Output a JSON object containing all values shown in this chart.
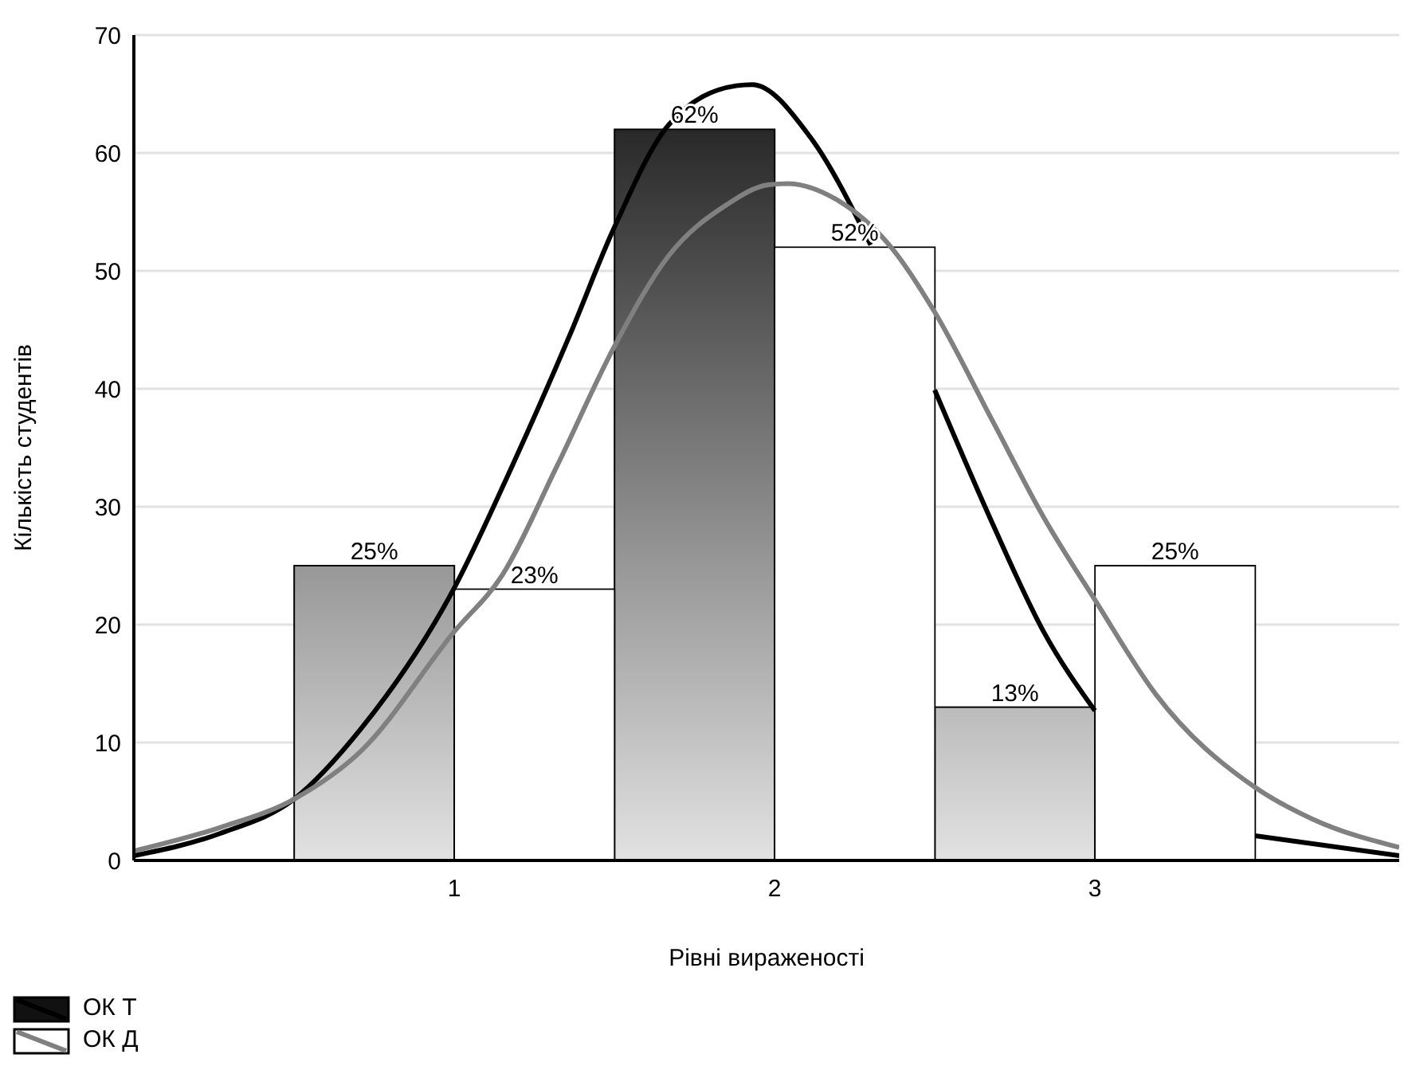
{
  "chart_data": {
    "type": "bar",
    "xlabel": "Рівні вираженості",
    "ylabel": "Кількість студентів",
    "xlim": [
      0,
      3.95
    ],
    "xticks": [
      1,
      2,
      3
    ],
    "ylim": [
      0,
      70
    ],
    "yticks": [
      0,
      10,
      20,
      30,
      40,
      50,
      60,
      70
    ],
    "grid": "y",
    "legend": "bottom left",
    "series": [
      {
        "name": "ОК Т",
        "color": "#111111",
        "x": [
          0.75,
          1.75,
          2.75
        ],
        "values": [
          25,
          62,
          13
        ],
        "value_labels": [
          "25%",
          "62%",
          "13%"
        ]
      },
      {
        "type": "line",
        "color": "#000000",
        "x": [
          0,
          0.27,
          0.5,
          0.71,
          1.0,
          1.18,
          1.36,
          1.5,
          1.67,
          1.88,
          1.93,
          2.11,
          2.3,
          2.4,
          2.5,
          2.68,
          2.84,
          3.0,
          3.25,
          3.5,
          3.95
        ],
        "values": [
          0.4,
          2.3,
          5.2,
          11.2,
          23.1,
          33.4,
          44.5,
          53.7,
          62.4,
          65.7,
          65.8,
          61.4,
          52.2,
          null,
          39.9,
          28.6,
          19.4,
          12.7,
          null,
          2.1,
          0.4
        ]
      },
      {
        "name": "ОК Д",
        "color": "#ffffff",
        "x": [
          1.25,
          2.25,
          3.25
        ],
        "values": [
          23,
          52,
          25
        ],
        "value_labels": [
          "23%",
          "52%",
          "25%"
        ]
      },
      {
        "type": "line",
        "color": "#808080",
        "x": [
          0,
          0.27,
          0.5,
          0.71,
          1.0,
          1.15,
          1.32,
          1.5,
          1.67,
          1.85,
          1.98,
          2.04,
          2.19,
          2.37,
          2.5,
          2.68,
          2.84,
          3.0,
          3.19,
          3.5,
          3.68,
          3.95
        ],
        "values": [
          0.8,
          2.8,
          5.2,
          9.3,
          19.4,
          24.2,
          33.4,
          43.6,
          51.3,
          55.6,
          57.3,
          57.4,
          56.1,
          51.8,
          46.5,
          37.3,
          29.1,
          22.1,
          14.1,
          6.2,
          3.5,
          1.1
        ]
      }
    ]
  }
}
